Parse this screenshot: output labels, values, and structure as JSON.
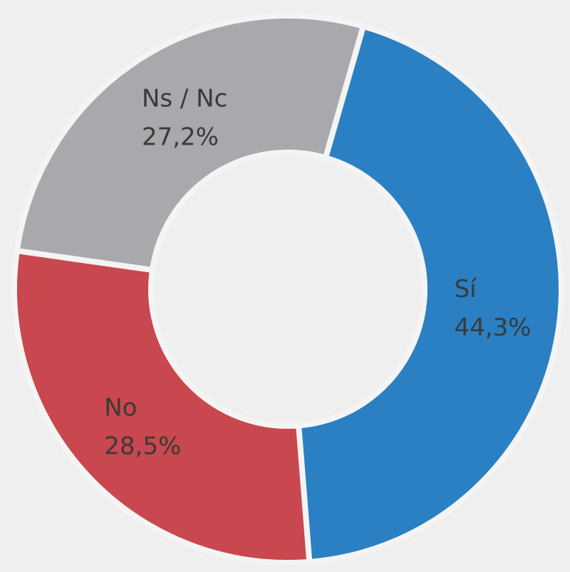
{
  "chart_data": {
    "type": "donut",
    "categories": [
      "Sí",
      "No",
      "Ns / Nc"
    ],
    "values": [
      44.3,
      28.5,
      27.2
    ],
    "value_labels": [
      "44,3%",
      "28,5%",
      "27,2%"
    ],
    "colors": [
      "#2a80c2",
      "#c9474e",
      "#a8a9ac"
    ]
  }
}
